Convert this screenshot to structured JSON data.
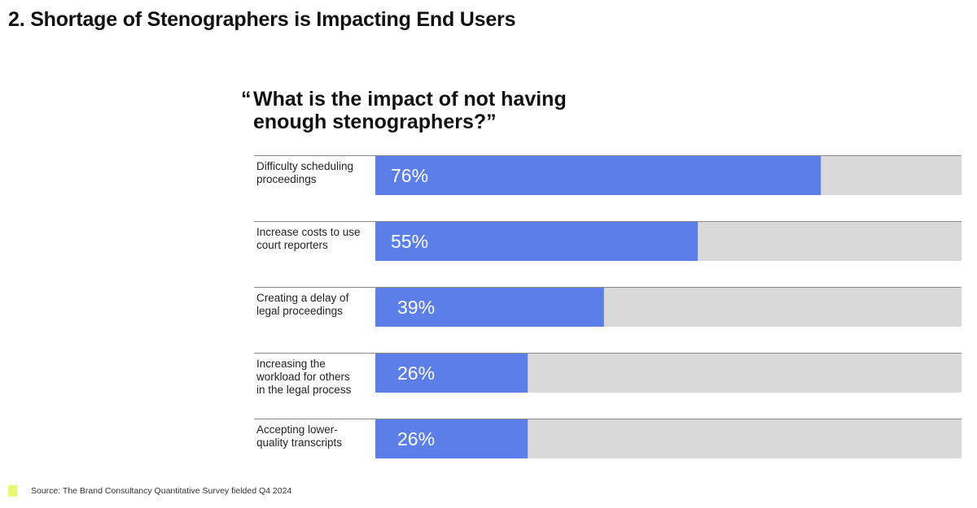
{
  "page": {
    "title": "2. Shortage of Stenographers is Impacting End Users",
    "source": "Source: The Brand Consultancy Quantitative Survey fielded Q4 2024"
  },
  "chart_data": {
    "type": "bar",
    "orientation": "horizontal",
    "title": "What is the impact of not having enough stenographers?",
    "open_quote": "“",
    "close_quote": "”",
    "categories": [
      "Difficulty scheduling proceedings",
      "Increase costs to use court reporters",
      "Creating a delay of legal proceedings",
      "Increasing the workload for others in the legal process",
      "Accepting lower-quality transcripts"
    ],
    "label_lines": [
      [
        "Difficulty scheduling",
        "proceedings"
      ],
      [
        "Increase costs to use",
        "court reporters"
      ],
      [
        "Creating a delay of",
        "legal proceedings"
      ],
      [
        "Increasing the",
        "workload for others",
        "in the legal process"
      ],
      [
        "Accepting lower-",
        "quality transcripts"
      ]
    ],
    "values": [
      76,
      55,
      39,
      26,
      26
    ],
    "value_labels": [
      "76%",
      "55%",
      "39%",
      "26%",
      "26%"
    ],
    "xlim": [
      0,
      100
    ],
    "grid": false,
    "legend": "none",
    "colors": {
      "bar": "#5b7ee9",
      "track": "#d9d9d9",
      "divider": "#8a8a8a",
      "value_text": "#ffffff",
      "source_swatch": "#eaf87a"
    }
  }
}
